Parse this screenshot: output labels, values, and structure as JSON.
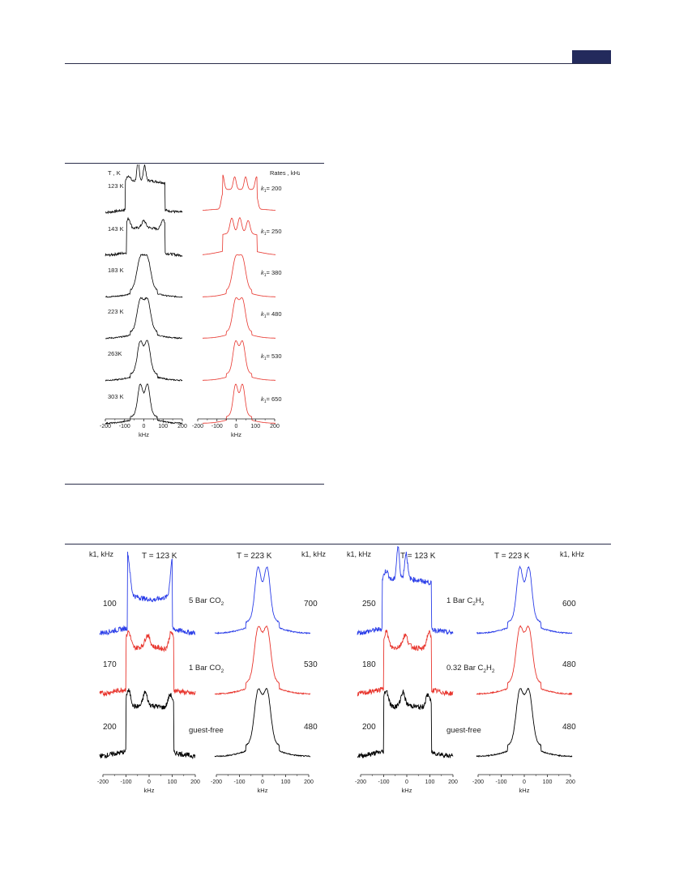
{
  "figure1": {
    "left_header": "T , K",
    "right_header": "Rates , kHz",
    "temperatures": [
      "123 K",
      "143 K",
      "183 K",
      "223 K",
      "263K",
      "303 K"
    ],
    "rate_values": [
      "200",
      "250",
      "380",
      "480",
      "530",
      "650"
    ],
    "rate_prefix": "k",
    "rate_sub": "1",
    "ticks": [
      "-200",
      "-100",
      "0",
      "100",
      "200"
    ],
    "xlabel": "kHz",
    "colors": {
      "experimental": "#000000",
      "simulated": "#e8352d"
    }
  },
  "figure2": {
    "k_header": "k1, kHz",
    "t_low": "T = 123 K",
    "t_high": "T = 223 K",
    "xlabel": "kHz",
    "ticks": [
      "-200",
      "-100",
      "0",
      "100",
      "200"
    ],
    "co2": {
      "left_k": [
        "100",
        "170",
        "200"
      ],
      "right_k": [
        "700",
        "530",
        "480"
      ],
      "labels": [
        {
          "text": "5 Bar CO",
          "sub": "2"
        },
        {
          "text": "1 Bar CO",
          "sub": "2"
        },
        {
          "text": "guest-free",
          "sub": ""
        }
      ]
    },
    "c2h2": {
      "left_k": [
        "250",
        "180",
        "200"
      ],
      "right_k": [
        "600",
        "480",
        "480"
      ],
      "labels": [
        {
          "text": "1 Bar C",
          "sub": "2",
          "text2": "H",
          "sub2": "2"
        },
        {
          "text": "0.32 Bar C",
          "sub": "2",
          "text2": "H",
          "sub2": "2"
        },
        {
          "text": "guest-free",
          "sub": "",
          "text2": "",
          "sub2": ""
        }
      ]
    },
    "colors": {
      "top": "#2b3ee8",
      "mid": "#e8352d",
      "bottom": "#000000"
    }
  }
}
